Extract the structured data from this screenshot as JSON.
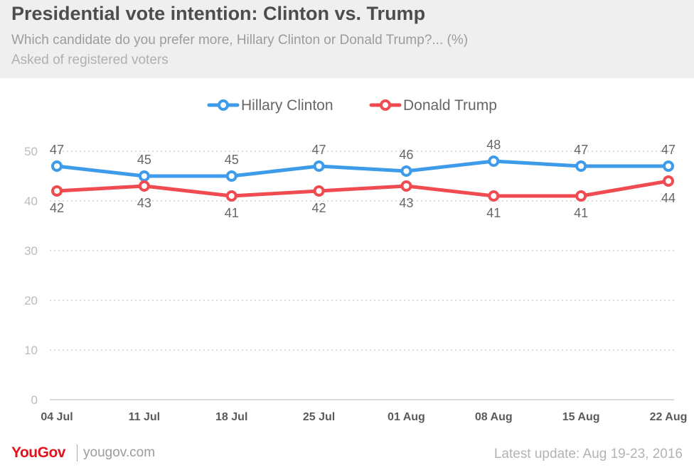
{
  "header": {
    "title": "Presidential vote intention: Clinton vs. Trump",
    "subtitle": "Which candidate do you prefer more, Hillary Clinton or Donald Trump?... (%)",
    "note": "Asked of registered voters"
  },
  "footer": {
    "brand": "YouGov",
    "site": "yougov.com",
    "update": "Latest update: Aug 19-23, 2016"
  },
  "chart_data": {
    "type": "line",
    "title": "Presidential vote intention: Clinton vs. Trump",
    "xlabel": "",
    "ylabel": "",
    "x": [
      "04 Jul",
      "11 Jul",
      "18 Jul",
      "25 Jul",
      "01 Aug",
      "08 Aug",
      "15 Aug",
      "22 Aug"
    ],
    "ylim": [
      0,
      50
    ],
    "yticks": [
      0,
      10,
      20,
      30,
      40,
      50
    ],
    "grid": true,
    "legend_position": "top-center",
    "series": [
      {
        "name": "Hillary Clinton",
        "color": "#3d9be9",
        "values": [
          47,
          45,
          45,
          47,
          46,
          48,
          47,
          47
        ],
        "label_position": "above"
      },
      {
        "name": "Donald Trump",
        "color": "#f04b50",
        "values": [
          42,
          43,
          41,
          42,
          43,
          41,
          41,
          44
        ],
        "label_position": "below"
      }
    ]
  }
}
